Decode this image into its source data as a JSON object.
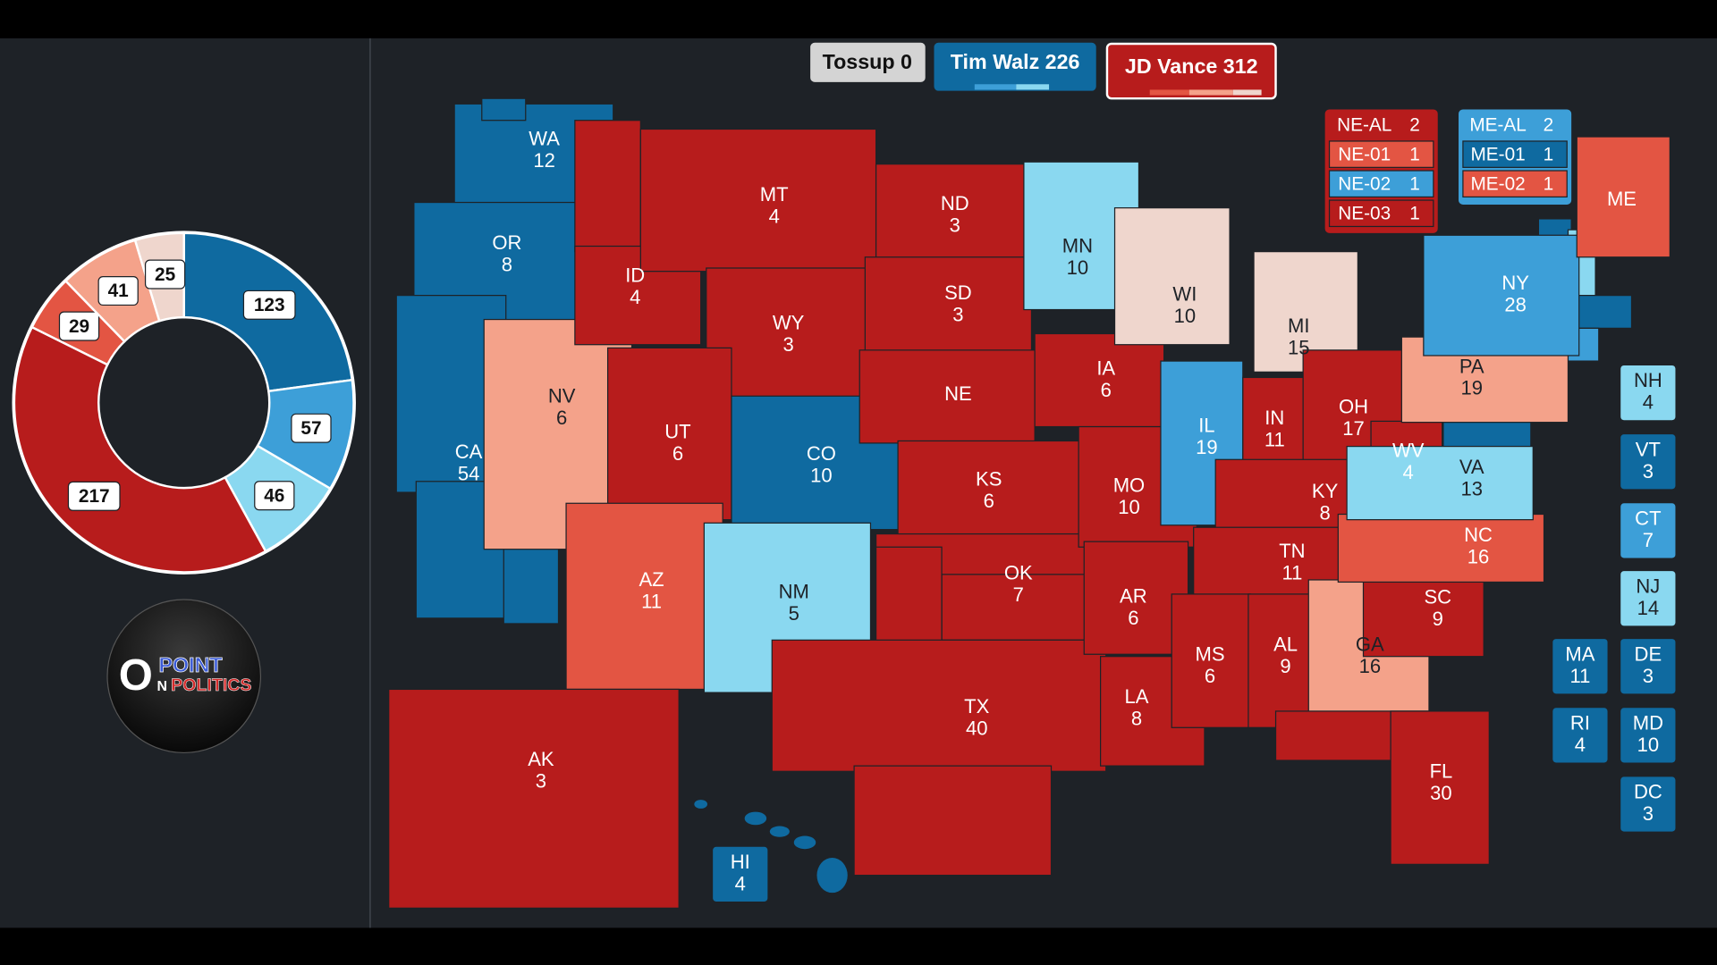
{
  "header": {
    "tossup": {
      "label": "Tossup",
      "votes": 0
    },
    "dem": {
      "label": "Tim Walz",
      "votes": 226
    },
    "rep": {
      "label": "JD Vance",
      "votes": 312
    }
  },
  "chart_data": {
    "type": "donut",
    "values": [
      123,
      57,
      46,
      217,
      29,
      41,
      25
    ],
    "colors": [
      "#0f6aa0",
      "#3d9fd8",
      "#8ad8f0",
      "#b71c1c",
      "#e35543",
      "#f4a28a",
      "#efd6cd"
    ]
  },
  "logo": {
    "big": "O",
    "top": "POINT",
    "small": "N",
    "bottom": "POLITICS"
  },
  "ratings": {
    "safe_r": {
      "fill": "#b71c1c",
      "ink": "#ffffff"
    },
    "likely_r": {
      "fill": "#e35543",
      "ink": "#ffffff"
    },
    "lean_r": {
      "fill": "#f4a28a",
      "ink": "#1e2227"
    },
    "tilt_r": {
      "fill": "#efd6cd",
      "ink": "#1e2227"
    },
    "safe_d": {
      "fill": "#0f6aa0",
      "ink": "#ffffff"
    },
    "likely_d": {
      "fill": "#3d9fd8",
      "ink": "#ffffff"
    },
    "lean_d": {
      "fill": "#8ad8f0",
      "ink": "#1e2227"
    }
  },
  "states": [
    {
      "abbr": "WA",
      "votes": 12,
      "rating": "safe_d"
    },
    {
      "abbr": "OR",
      "votes": 8,
      "rating": "safe_d"
    },
    {
      "abbr": "CA",
      "votes": 54,
      "rating": "safe_d"
    },
    {
      "abbr": "NV",
      "votes": 6,
      "rating": "lean_r"
    },
    {
      "abbr": "ID",
      "votes": 4,
      "rating": "safe_r"
    },
    {
      "abbr": "MT",
      "votes": 4,
      "rating": "safe_r"
    },
    {
      "abbr": "WY",
      "votes": 3,
      "rating": "safe_r"
    },
    {
      "abbr": "UT",
      "votes": 6,
      "rating": "safe_r"
    },
    {
      "abbr": "AZ",
      "votes": 11,
      "rating": "likely_r"
    },
    {
      "abbr": "CO",
      "votes": 10,
      "rating": "safe_d"
    },
    {
      "abbr": "NM",
      "votes": 5,
      "rating": "lean_d"
    },
    {
      "abbr": "ND",
      "votes": 3,
      "rating": "safe_r"
    },
    {
      "abbr": "SD",
      "votes": 3,
      "rating": "safe_r"
    },
    {
      "abbr": "NE",
      "rating": "safe_r"
    },
    {
      "abbr": "KS",
      "votes": 6,
      "rating": "safe_r"
    },
    {
      "abbr": "OK",
      "votes": 7,
      "rating": "safe_r"
    },
    {
      "abbr": "TX",
      "votes": 40,
      "rating": "safe_r"
    },
    {
      "abbr": "MN",
      "votes": 10,
      "rating": "lean_d"
    },
    {
      "abbr": "IA",
      "votes": 6,
      "rating": "safe_r"
    },
    {
      "abbr": "MO",
      "votes": 10,
      "rating": "safe_r"
    },
    {
      "abbr": "AR",
      "votes": 6,
      "rating": "safe_r"
    },
    {
      "abbr": "LA",
      "votes": 8,
      "rating": "safe_r"
    },
    {
      "abbr": "WI",
      "votes": 10,
      "rating": "tilt_r"
    },
    {
      "abbr": "IL",
      "votes": 19,
      "rating": "likely_d"
    },
    {
      "abbr": "MI",
      "votes": 15,
      "rating": "tilt_r"
    },
    {
      "abbr": "IN",
      "votes": 11,
      "rating": "safe_r"
    },
    {
      "abbr": "OH",
      "votes": 17,
      "rating": "safe_r"
    },
    {
      "abbr": "KY",
      "votes": 8,
      "rating": "safe_r"
    },
    {
      "abbr": "TN",
      "votes": 11,
      "rating": "safe_r"
    },
    {
      "abbr": "MS",
      "votes": 6,
      "rating": "safe_r"
    },
    {
      "abbr": "AL",
      "votes": 9,
      "rating": "safe_r"
    },
    {
      "abbr": "GA",
      "votes": 16,
      "rating": "lean_r"
    },
    {
      "abbr": "FL",
      "votes": 30,
      "rating": "safe_r"
    },
    {
      "abbr": "SC",
      "votes": 9,
      "rating": "safe_r"
    },
    {
      "abbr": "NC",
      "votes": 16,
      "rating": "likely_r"
    },
    {
      "abbr": "WV",
      "votes": 4,
      "rating": "safe_r"
    },
    {
      "abbr": "VA",
      "votes": 13,
      "rating": "lean_d"
    },
    {
      "abbr": "PA",
      "votes": 19,
      "rating": "lean_r"
    },
    {
      "abbr": "NY",
      "votes": 28,
      "rating": "likely_d"
    },
    {
      "abbr": "ME",
      "rating": "likely_r"
    },
    {
      "abbr": "AK",
      "votes": 3,
      "rating": "safe_r"
    },
    {
      "abbr": "HI",
      "votes": 4,
      "rating": "safe_d"
    },
    {
      "abbr": "NH",
      "votes": 4,
      "rating": "lean_d"
    },
    {
      "abbr": "VT",
      "votes": 3,
      "rating": "safe_d"
    },
    {
      "abbr": "CT",
      "votes": 7,
      "rating": "likely_d"
    },
    {
      "abbr": "NJ",
      "votes": 14,
      "rating": "lean_d"
    },
    {
      "abbr": "MA",
      "votes": 11,
      "rating": "safe_d"
    },
    {
      "abbr": "DE",
      "votes": 3,
      "rating": "safe_d"
    },
    {
      "abbr": "RI",
      "votes": 4,
      "rating": "safe_d"
    },
    {
      "abbr": "MD",
      "votes": 10,
      "rating": "safe_d"
    },
    {
      "abbr": "DC",
      "votes": 3,
      "rating": "safe_d"
    }
  ],
  "districts": [
    {
      "label": "NE-AL",
      "votes": 2,
      "rating": "safe_r"
    },
    {
      "label": "NE-01",
      "votes": 1,
      "rating": "likely_r"
    },
    {
      "label": "NE-02",
      "votes": 1,
      "rating": "likely_d"
    },
    {
      "label": "NE-03",
      "votes": 1,
      "rating": "safe_r"
    },
    {
      "label": "ME-AL",
      "votes": 2,
      "rating": "likely_d"
    },
    {
      "label": "ME-01",
      "votes": 1,
      "rating": "safe_d"
    },
    {
      "label": "ME-02",
      "votes": 1,
      "rating": "likely_r"
    }
  ]
}
